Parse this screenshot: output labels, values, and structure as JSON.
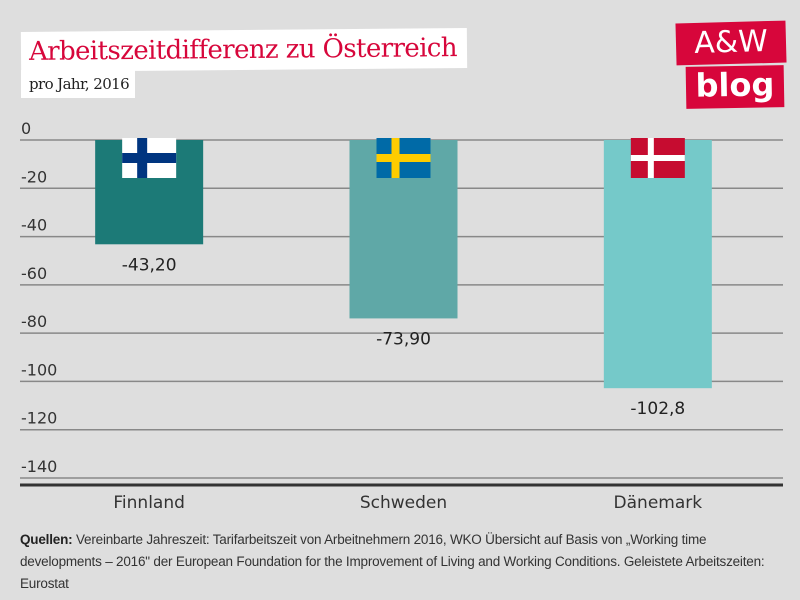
{
  "header": {
    "title": "Arbeitszeitdifferenz zu Österreich",
    "subtitle": "pro Jahr, 2016"
  },
  "logo": {
    "line1": "A&W",
    "line2": "blog",
    "color": "#d7063b"
  },
  "chart_data": {
    "type": "bar",
    "title": "Arbeitszeitdifferenz zu Österreich",
    "subtitle": "pro Jahr, 2016",
    "xlabel": "",
    "ylabel": "",
    "categories": [
      "Finnland",
      "Schweden",
      "Dänemark"
    ],
    "values": [
      -43.2,
      -73.9,
      -102.8
    ],
    "data_labels": [
      "-43,20",
      "-73,90",
      "-102,8"
    ],
    "bar_colors": [
      "#1c7a77",
      "#5fa8a7",
      "#75c9c9"
    ],
    "flags": [
      "finland-flag",
      "sweden-flag",
      "denmark-flag"
    ],
    "ylim": [
      -140,
      0
    ],
    "yticks": [
      0,
      -20,
      -40,
      -60,
      -80,
      -100,
      -120,
      -140
    ],
    "ytick_labels": [
      "0",
      "-20",
      "-40",
      "-60",
      "-80",
      "-100",
      "-120",
      "-140"
    ],
    "grid": true,
    "legend": "none"
  },
  "footer": {
    "source_label": "Quellen:",
    "source_text": " Vereinbarte Jahreszeit: Tarifarbeitszeit von Arbeitnehmern 2016, WKO Übersicht auf Basis von „Working time developments – 2016\" der European Foundation for the Improvement of Living and Working Conditions. Geleistete Arbeitszeiten: Eurostat"
  }
}
